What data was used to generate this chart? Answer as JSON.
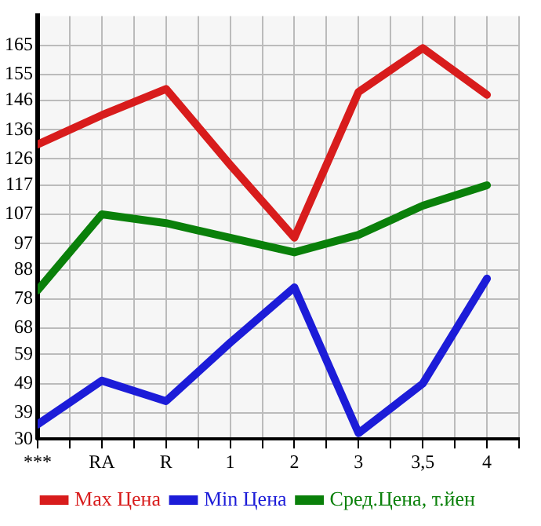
{
  "chart_data": {
    "type": "line",
    "categories": [
      "***",
      "RA",
      "R",
      "1",
      "2",
      "3",
      "3,5",
      "4"
    ],
    "series": [
      {
        "name": "Max Цена",
        "color": "#d81c1c",
        "values": [
          131,
          141,
          150,
          124,
          99,
          149,
          164,
          148
        ]
      },
      {
        "name": "Min Цена",
        "color": "#1c1cd8",
        "values": [
          35,
          50,
          43,
          63,
          82,
          32,
          49,
          85
        ]
      },
      {
        "name": "Сред.Цена, т.йен",
        "color": "#0a800a",
        "values": [
          81,
          107,
          104,
          99,
          94,
          100,
          110,
          117
        ]
      }
    ],
    "ylim": [
      30,
      175
    ],
    "yticks": [
      30,
      39,
      49,
      59,
      68,
      78,
      88,
      97,
      107,
      117,
      126,
      136,
      146,
      155,
      165
    ],
    "grid": true,
    "legend": "bottom",
    "marker": "none",
    "line_style": "solid"
  }
}
